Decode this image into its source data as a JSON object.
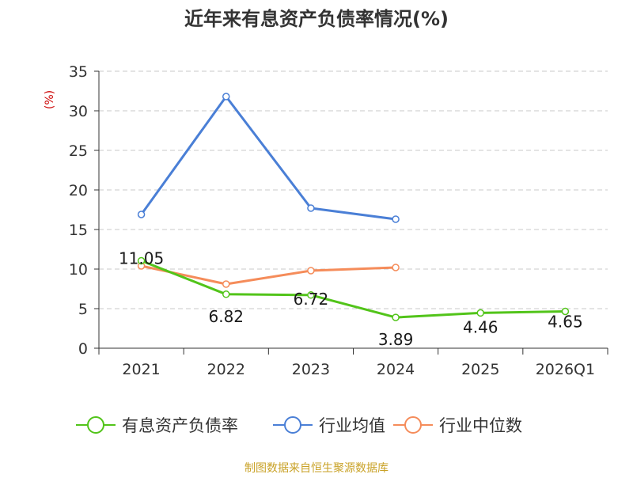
{
  "chart_data": {
    "type": "line",
    "title": "近年来有息资产负债率情况(%)",
    "ylabel": "(%)",
    "categories": [
      "2021",
      "2022",
      "2023",
      "2024",
      "2025",
      "2026Q1"
    ],
    "ylim": [
      0,
      35
    ],
    "yticks": [
      0,
      5,
      10,
      15,
      20,
      25,
      30,
      35
    ],
    "grid": true,
    "legend_position": "bottom",
    "series": [
      {
        "name": "有息资产负债率",
        "color": "#52c41a",
        "values": [
          11.05,
          6.82,
          6.72,
          3.89,
          4.46,
          4.65
        ],
        "labels": [
          "11.05",
          "6.82",
          "6.72",
          "3.89",
          "4.46",
          "4.65"
        ]
      },
      {
        "name": "行业均值",
        "color": "#4a7fd6",
        "values": [
          16.9,
          31.8,
          17.7,
          16.3,
          null,
          null
        ]
      },
      {
        "name": "行业中位数",
        "color": "#f58c5a",
        "values": [
          10.4,
          8.1,
          9.8,
          10.2,
          null,
          null
        ]
      }
    ]
  },
  "footer": {
    "source": "制图数据来自恒生聚源数据库"
  }
}
